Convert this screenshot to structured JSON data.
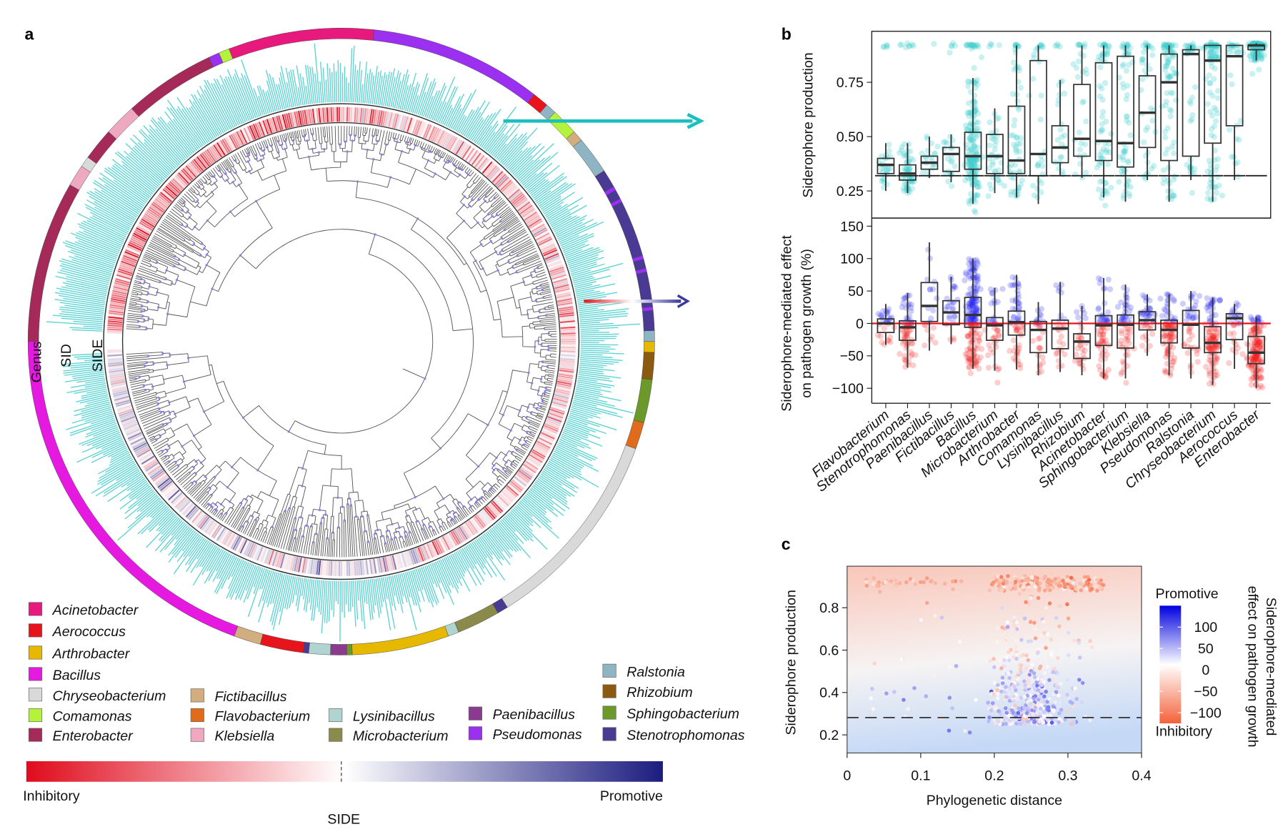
{
  "panel_labels": {
    "a": "a",
    "b": "b",
    "c": "c"
  },
  "panel_a": {
    "ring_labels": {
      "genus": "Genus",
      "sid": "SID",
      "side": "SIDE"
    },
    "colors": {
      "sid_bars": "#5fd3d3",
      "inhibitory": "#e00b1c",
      "promotive": "#1c1c80",
      "tree": "#555555",
      "node": "#8a7cf0"
    },
    "legend": [
      {
        "name": "Acinetobacter",
        "color": "#e8197d"
      },
      {
        "name": "Aerococcus",
        "color": "#e8141c"
      },
      {
        "name": "Arthrobacter",
        "color": "#e6b800"
      },
      {
        "name": "Bacillus",
        "color": "#e619e0"
      },
      {
        "name": "Chryseobacterium",
        "color": "#d9d9d9"
      },
      {
        "name": "Comamonas",
        "color": "#b5f23a"
      },
      {
        "name": "Enterobacter",
        "color": "#a52a5a"
      },
      {
        "name": "Fictibacillus",
        "color": "#d2ad80"
      },
      {
        "name": "Flavobacterium",
        "color": "#e06b1d"
      },
      {
        "name": "Klebsiella",
        "color": "#eea8c0"
      },
      {
        "name": "Lysinibacillus",
        "color": "#b0d4d0"
      },
      {
        "name": "Microbacterium",
        "color": "#8a8a4a"
      },
      {
        "name": "Paenibacillus",
        "color": "#8b3a8f"
      },
      {
        "name": "Pseudomonas",
        "color": "#9b30f0"
      },
      {
        "name": "Ralstonia",
        "color": "#8fb5c4"
      },
      {
        "name": "Rhizobium",
        "color": "#8b5a10"
      },
      {
        "name": "Sphingobacterium",
        "color": "#6b9a2a"
      },
      {
        "name": "Stenotrophomonas",
        "color": "#4b3a94"
      }
    ],
    "colorbar": {
      "title": "SIDE",
      "left_label": "Inhibitory",
      "right_label": "Promotive"
    }
  },
  "chart_data": [
    {
      "type": "box",
      "panel": "b-top",
      "ylabel": "Siderophore production",
      "ylim": [
        0.125,
        0.985
      ],
      "yticks": [
        "0.25",
        "0.50",
        "0.75"
      ],
      "reference_line": 0.32,
      "point_color": "#40cccc",
      "categories": [
        "Flavobacterium",
        "Stenotrophomonas",
        "Paenibacillus",
        "Fictibacillus",
        "Bacillus",
        "Microbacterium",
        "Arthrobacter",
        "Comamonas",
        "Lysinibacillus",
        "Rhizobium",
        "Acinetobacter",
        "Sphingobacterium",
        "Klebsiella",
        "Pseudomonas",
        "Ralstonia",
        "Chryseobacterium",
        "Aerococcus",
        "Enterobacter"
      ],
      "boxes": [
        [
          0.25,
          0.33,
          0.37,
          0.4,
          0.47
        ],
        [
          0.24,
          0.3,
          0.33,
          0.37,
          0.47
        ],
        [
          0.31,
          0.35,
          0.38,
          0.41,
          0.5
        ],
        [
          0.29,
          0.34,
          0.42,
          0.45,
          0.51
        ],
        [
          0.19,
          0.35,
          0.41,
          0.52,
          0.77
        ],
        [
          0.24,
          0.33,
          0.41,
          0.51,
          0.63
        ],
        [
          0.22,
          0.33,
          0.39,
          0.64,
          0.92
        ],
        [
          0.19,
          0.32,
          0.42,
          0.85,
          0.92
        ],
        [
          0.32,
          0.38,
          0.45,
          0.55,
          0.76
        ],
        [
          0.31,
          0.41,
          0.49,
          0.74,
          0.92
        ],
        [
          0.22,
          0.39,
          0.48,
          0.84,
          0.92
        ],
        [
          0.2,
          0.36,
          0.47,
          0.87,
          0.92
        ],
        [
          0.3,
          0.45,
          0.61,
          0.78,
          0.92
        ],
        [
          0.2,
          0.39,
          0.75,
          0.88,
          0.92
        ],
        [
          0.3,
          0.41,
          0.88,
          0.9,
          0.92
        ],
        [
          0.2,
          0.47,
          0.85,
          0.92,
          0.92
        ],
        [
          0.3,
          0.55,
          0.87,
          0.92,
          0.92
        ],
        [
          0.85,
          0.9,
          0.92,
          0.92,
          0.93
        ]
      ]
    },
    {
      "type": "box",
      "panel": "b-bottom",
      "ylabel": [
        "Siderophore-mediated effect",
        "on pathogen growth (%)"
      ],
      "ylim": [
        -123,
        162
      ],
      "yticks": [
        "150",
        "100",
        "50",
        "0",
        "−50",
        "−100"
      ],
      "reference_line": 0,
      "positive_color": "#2020f0",
      "negative_color": "#f02020",
      "categories": [
        "Flavobacterium",
        "Stenotrophomonas",
        "Paenibacillus",
        "Fictibacillus",
        "Bacillus",
        "Microbacterium",
        "Arthrobacter",
        "Comamonas",
        "Lysinibacillus",
        "Rhizobium",
        "Acinetobacter",
        "Sphingobacterium",
        "Klebsiella",
        "Pseudomonas",
        "Ralstonia",
        "Chryseobacterium",
        "Aerococcus",
        "Enterobacter"
      ],
      "boxes": [
        [
          -33,
          -14,
          0,
          7,
          30
        ],
        [
          -68,
          -26,
          -6,
          4,
          47
        ],
        [
          -42,
          3,
          27,
          63,
          125
        ],
        [
          -32,
          -2,
          17,
          35,
          72
        ],
        [
          -70,
          -6,
          13,
          40,
          100
        ],
        [
          -73,
          -26,
          -3,
          9,
          55
        ],
        [
          -71,
          -18,
          2,
          19,
          75
        ],
        [
          -80,
          -45,
          -10,
          3,
          33
        ],
        [
          -75,
          -39,
          -8,
          5,
          64
        ],
        [
          -80,
          -54,
          -28,
          -16,
          27
        ],
        [
          -85,
          -34,
          -3,
          12,
          70
        ],
        [
          -85,
          -38,
          -2,
          13,
          60
        ],
        [
          -50,
          -10,
          5,
          18,
          45
        ],
        [
          -80,
          -30,
          -10,
          5,
          45
        ],
        [
          -85,
          -38,
          -2,
          20,
          50
        ],
        [
          -95,
          -45,
          -30,
          -5,
          40
        ],
        [
          -70,
          -25,
          8,
          15,
          30
        ],
        [
          -100,
          -62,
          -45,
          -20,
          10
        ]
      ]
    },
    {
      "type": "scatter",
      "panel": "c",
      "xlabel": "Phylogenetic distance",
      "ylabel": "Siderophore production",
      "xlim": [
        0,
        0.4
      ],
      "ylim": [
        0.115,
        0.996
      ],
      "xticks": [
        "0",
        "0.1",
        "0.2",
        "0.3",
        "0.4"
      ],
      "yticks": [
        "0.8",
        "0.6",
        "0.4",
        "0.2"
      ],
      "reference_line": 0.285,
      "colorbar": {
        "title": [
          "Siderophore-mediated",
          "effect on pathogen growth"
        ],
        "top_label": "Promotive",
        "bottom_label": "Inhibitory",
        "ticks": [
          "100",
          "50",
          "0",
          "−50",
          "−100"
        ],
        "range": [
          -120,
          130
        ],
        "colors": [
          "#0000e0",
          "#ffffff",
          "#f4623a"
        ]
      }
    }
  ]
}
